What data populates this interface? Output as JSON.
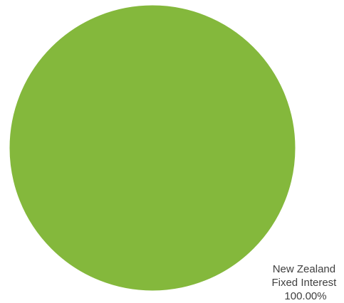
{
  "chart_data": {
    "type": "pie",
    "categories": [
      "New Zealand Fixed Interest"
    ],
    "values": [
      100
    ],
    "slices": [
      {
        "label_lines": [
          "New Zealand",
          "Fixed Interest"
        ],
        "percent_text": "100.00%",
        "value": 100,
        "color": "#84B83C"
      }
    ],
    "title": "",
    "legend": "none"
  }
}
